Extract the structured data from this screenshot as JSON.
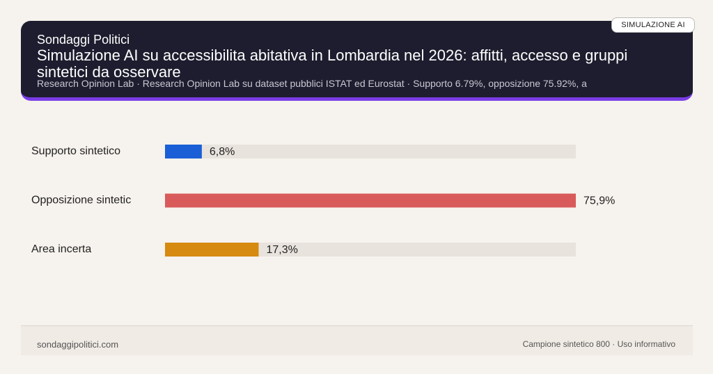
{
  "header": {
    "badge": "SIMULAZIONE AI",
    "brand": "Sondaggi Politici"
  },
  "chart_data": {
    "type": "bar",
    "orientation": "horizontal",
    "title": "Simulazione AI su accessibilita abitativa in Lombardia nel 2026: affitti, accesso e gruppi sintetici da osservare",
    "subtitle": "Research Opinion Lab · Research Opinion Lab su dataset pubblici ISTAT ed Eurostat · Supporto 6.79%, opposizione 75.92%, a",
    "categories": [
      "Supporto sintetico",
      "Opposizione sintetic",
      "Area incerta"
    ],
    "values": [
      6.8,
      75.9,
      17.3
    ],
    "value_labels": [
      "6,8%",
      "75,9%",
      "17,3%"
    ],
    "colors": [
      "#1a5fd6",
      "#d95a5a",
      "#d68a10"
    ],
    "track_color": "#e8e3dd"
  },
  "footer": {
    "site": "sondaggipolitici.com",
    "note": "Campione sintetico 800 · Uso informativo"
  }
}
